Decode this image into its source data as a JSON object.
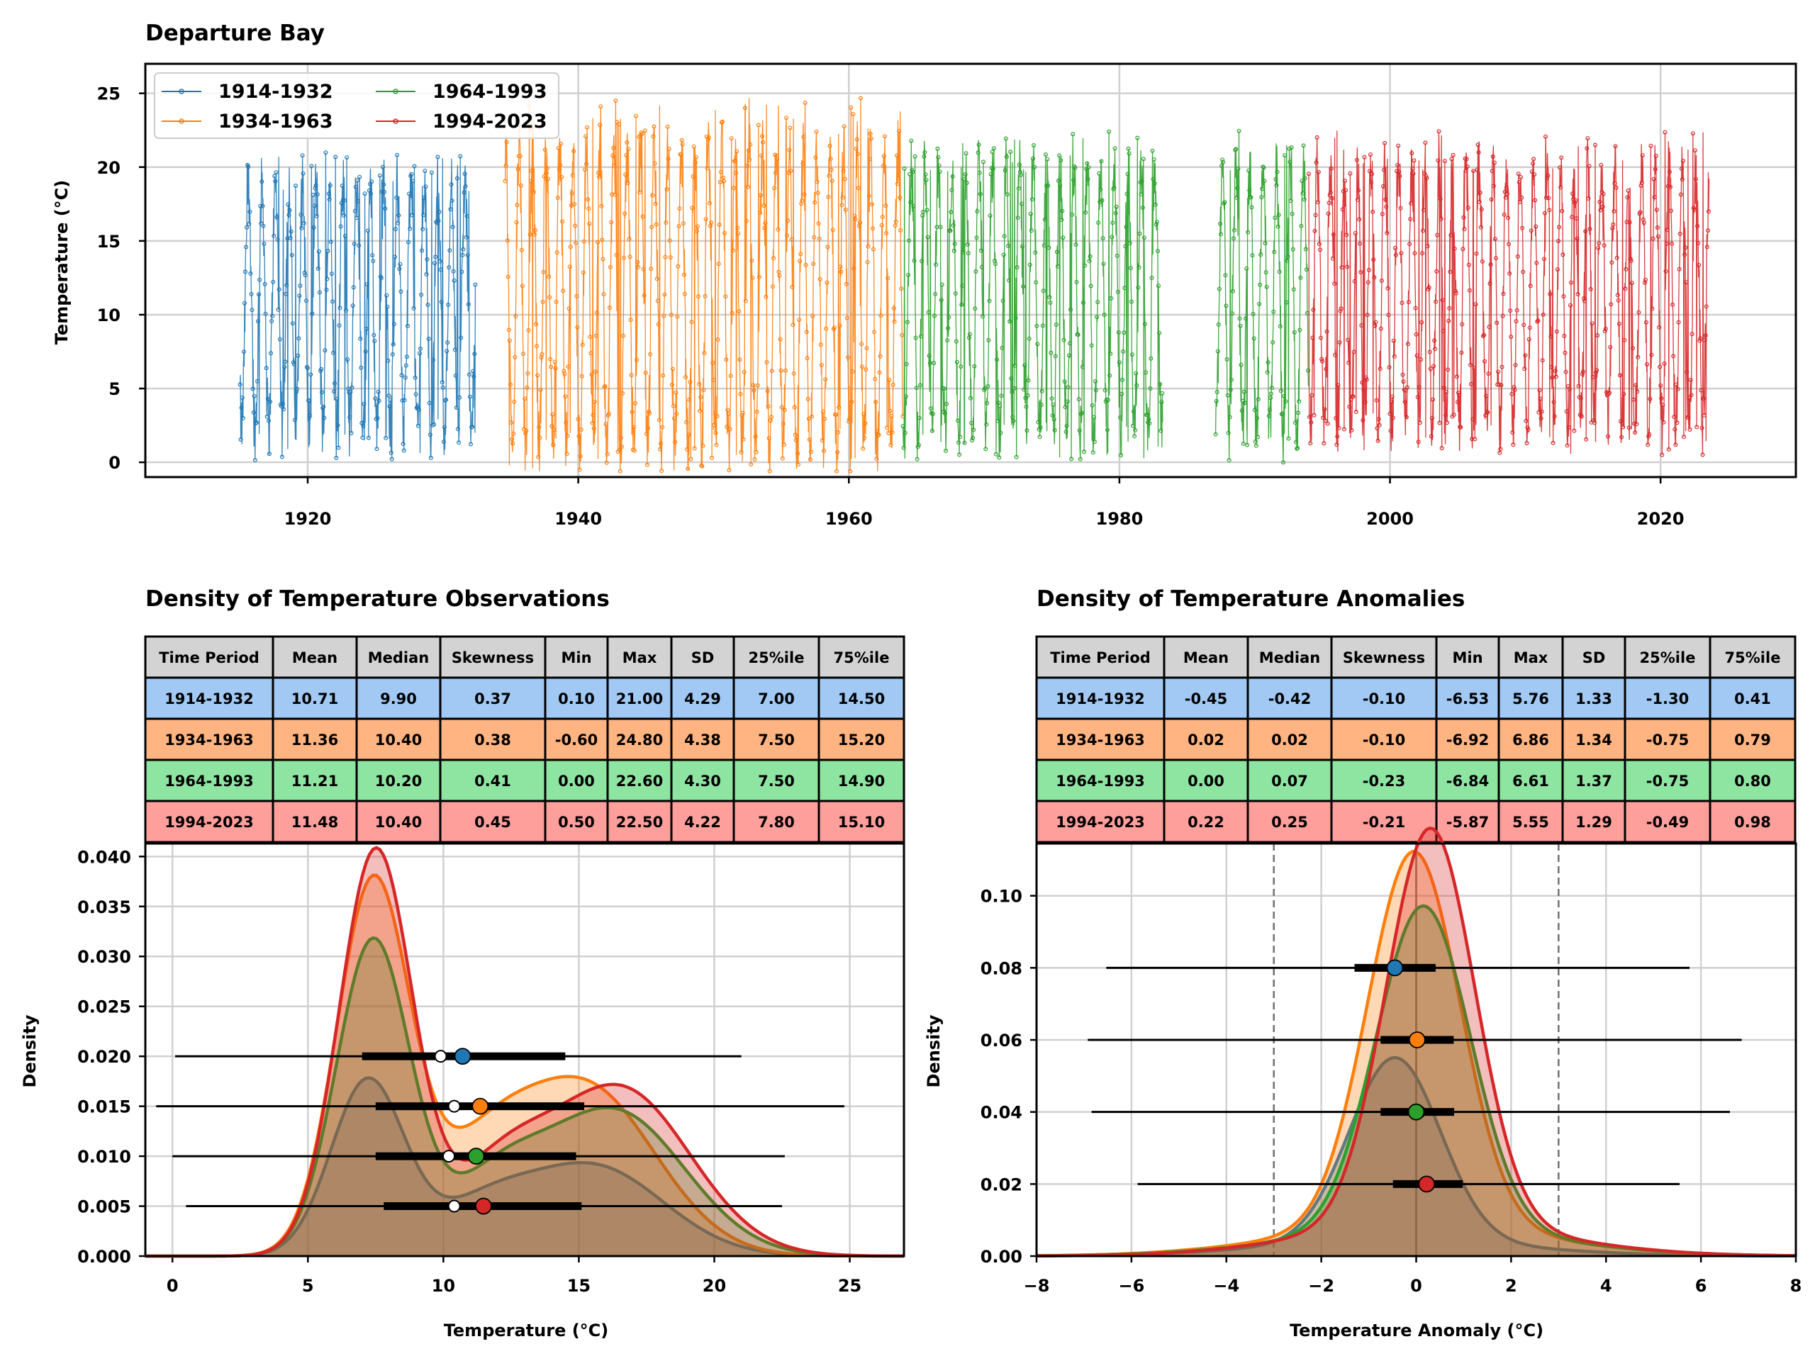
{
  "colors": {
    "p1": "#1f77b4",
    "p2": "#ff7f0e",
    "p3": "#2ca02c",
    "p4": "#d62728",
    "row1": "#a1c9f4",
    "row2": "#ffb482",
    "row3": "#8de5a1",
    "row4": "#ff9f9b",
    "header": "#d3d3d3"
  },
  "chart_data": [
    {
      "type": "line",
      "title": "Departure Bay",
      "xlabel": "",
      "ylabel": "Temperature ($^\\circ$C)",
      "ylabel_display": "Temperature (°C)",
      "xlim": [
        1908,
        2030
      ],
      "ylim": [
        -1,
        27
      ],
      "x_ticks": [
        "1920",
        "1940",
        "1960",
        "1980",
        "2000",
        "2020"
      ],
      "y_ticks": [
        "0",
        "5",
        "10",
        "15",
        "20",
        "25"
      ],
      "grid": true,
      "legend_position": "top-left",
      "series": [
        {
          "name": "1914-1932",
          "color_key": "p1",
          "start": 1915.0,
          "end": 1932.4,
          "mean": 10.71,
          "min": 0.1,
          "max": 21.0
        },
        {
          "name": "1934-1963",
          "color_key": "p2",
          "start": 1934.6,
          "end": 1964.0,
          "mean": 11.36,
          "min": -0.6,
          "max": 24.8
        },
        {
          "name": "1964-1993",
          "color_key": "p3",
          "start": 1964.0,
          "end": 1994.0,
          "gap": [
            1983.2,
            1987.1
          ],
          "mean": 11.21,
          "min": 0.0,
          "max": 22.6
        },
        {
          "name": "1994-2023",
          "color_key": "p4",
          "start": 1994.0,
          "end": 2023.6,
          "mean": 11.48,
          "min": 0.5,
          "max": 22.5
        }
      ],
      "legend": [
        "1914-1932",
        "1934-1963",
        "1964-1993",
        "1994-2023"
      ]
    },
    {
      "type": "area",
      "title": "Density of Temperature Observations",
      "xlabel": "Temperature ($^\\circ$C)",
      "xlabel_display": "Temperature (°C)",
      "ylabel": "Density",
      "xlim": [
        -1,
        27
      ],
      "ylim": [
        0,
        0.0413
      ],
      "x_ticks": [
        "0",
        "5",
        "10",
        "15",
        "20",
        "25"
      ],
      "y_ticks": [
        "0.000",
        "0.005",
        "0.010",
        "0.015",
        "0.020",
        "0.025",
        "0.030",
        "0.035",
        "0.040"
      ],
      "grid": true,
      "table": {
        "headers": [
          "Time Period",
          "Mean",
          "Median",
          "Skewness",
          "Min",
          "Max",
          "SD",
          "25%ile",
          "75%ile"
        ],
        "rows": [
          [
            "1914-1932",
            "10.71",
            "9.90",
            "0.37",
            "0.10",
            "21.00",
            "4.29",
            "7.00",
            "14.50"
          ],
          [
            "1934-1963",
            "11.36",
            "10.40",
            "0.38",
            "-0.60",
            "24.80",
            "4.38",
            "7.50",
            "15.20"
          ],
          [
            "1964-1993",
            "11.21",
            "10.20",
            "0.41",
            "0.00",
            "22.60",
            "4.30",
            "7.50",
            "14.90"
          ],
          [
            "1994-2023",
            "11.48",
            "10.40",
            "0.45",
            "0.50",
            "22.50",
            "4.22",
            "7.80",
            "15.10"
          ]
        ]
      },
      "kde": [
        {
          "name": "1914-1932",
          "color_key": "p1",
          "peak_x": 7.2,
          "peak_y": 0.0175,
          "second_x": 15.5,
          "second_y": 0.009
        },
        {
          "name": "1934-1963",
          "color_key": "p2",
          "peak_x": 7.4,
          "peak_y": 0.0372,
          "second_x": 15.2,
          "second_y": 0.017
        },
        {
          "name": "1964-1993",
          "color_key": "p3",
          "peak_x": 7.4,
          "peak_y": 0.0315,
          "second_x": 16.3,
          "second_y": 0.0145
        },
        {
          "name": "1994-2023",
          "color_key": "p4",
          "peak_x": 7.5,
          "peak_y": 0.0405,
          "second_x": 16.5,
          "second_y": 0.0168
        }
      ],
      "summary_bars": [
        {
          "name": "1914-1932",
          "color_key": "p1",
          "y": 0.02,
          "min": 0.1,
          "q1": 7.0,
          "median": 9.9,
          "mean": 10.71,
          "q3": 14.5,
          "max": 21.0
        },
        {
          "name": "1934-1963",
          "color_key": "p2",
          "y": 0.015,
          "min": -0.6,
          "q1": 7.5,
          "median": 10.4,
          "mean": 11.36,
          "q3": 15.2,
          "max": 24.8
        },
        {
          "name": "1964-1993",
          "color_key": "p3",
          "y": 0.01,
          "min": 0.0,
          "q1": 7.5,
          "median": 10.2,
          "mean": 11.21,
          "q3": 14.9,
          "max": 22.6
        },
        {
          "name": "1994-2023",
          "color_key": "p4",
          "y": 0.005,
          "min": 0.5,
          "q1": 7.8,
          "median": 10.4,
          "mean": 11.48,
          "q3": 15.1,
          "max": 22.5
        }
      ]
    },
    {
      "type": "area",
      "title": "Density of Temperature Anomalies",
      "xlabel": "Temperature Anomaly ($^\\circ$C)",
      "xlabel_display": "Temperature Anomaly (°C)",
      "ylabel": "Density",
      "xlim": [
        -8,
        8
      ],
      "ylim": [
        0,
        0.1145
      ],
      "x_ticks": [
        "−8",
        "−6",
        "−4",
        "−2",
        "0",
        "2",
        "4",
        "6",
        "8"
      ],
      "y_ticks": [
        "0.00",
        "0.02",
        "0.04",
        "0.06",
        "0.08",
        "0.10"
      ],
      "grid": true,
      "reference_lines": [
        -3,
        0,
        3
      ],
      "table": {
        "headers": [
          "Time Period",
          "Mean",
          "Median",
          "Skewness",
          "Min",
          "Max",
          "SD",
          "25%ile",
          "75%ile"
        ],
        "rows": [
          [
            "1914-1932",
            "-0.45",
            "-0.42",
            "-0.10",
            "-6.53",
            "5.76",
            "1.33",
            "-1.30",
            "0.41"
          ],
          [
            "1934-1963",
            "0.02",
            "0.02",
            "-0.10",
            "-6.92",
            "6.86",
            "1.34",
            "-0.75",
            "0.79"
          ],
          [
            "1964-1993",
            "0.00",
            "0.07",
            "-0.23",
            "-6.84",
            "6.61",
            "1.37",
            "-0.75",
            "0.80"
          ],
          [
            "1994-2023",
            "0.22",
            "0.25",
            "-0.21",
            "-5.87",
            "5.55",
            "1.29",
            "-0.49",
            "0.98"
          ]
        ]
      },
      "kde": [
        {
          "name": "1914-1932",
          "color_key": "p1",
          "peak_x": -0.45,
          "peak_y": 0.051,
          "sd": 1.33
        },
        {
          "name": "1934-1963",
          "color_key": "p2",
          "peak_x": -0.05,
          "peak_y": 0.104,
          "sd": 1.34
        },
        {
          "name": "1964-1993",
          "color_key": "p3",
          "peak_x": 0.15,
          "peak_y": 0.09,
          "sd": 1.37
        },
        {
          "name": "1994-2023",
          "color_key": "p4",
          "peak_x": 0.3,
          "peak_y": 0.11,
          "sd": 1.29
        }
      ],
      "summary_bars": [
        {
          "name": "1914-1932",
          "color_key": "p1",
          "y": 0.08,
          "min": -6.53,
          "q1": -1.3,
          "median": -0.42,
          "mean": -0.45,
          "q3": 0.41,
          "max": 5.76
        },
        {
          "name": "1934-1963",
          "color_key": "p2",
          "y": 0.06,
          "min": -6.92,
          "q1": -0.75,
          "median": 0.02,
          "mean": 0.02,
          "q3": 0.79,
          "max": 6.86
        },
        {
          "name": "1964-1993",
          "color_key": "p3",
          "y": 0.04,
          "min": -6.84,
          "q1": -0.75,
          "median": 0.07,
          "mean": 0.0,
          "q3": 0.8,
          "max": 6.61
        },
        {
          "name": "1994-2023",
          "color_key": "p4",
          "y": 0.02,
          "min": -5.87,
          "q1": -0.49,
          "median": 0.25,
          "mean": 0.22,
          "q3": 0.98,
          "max": 5.55
        }
      ]
    }
  ]
}
